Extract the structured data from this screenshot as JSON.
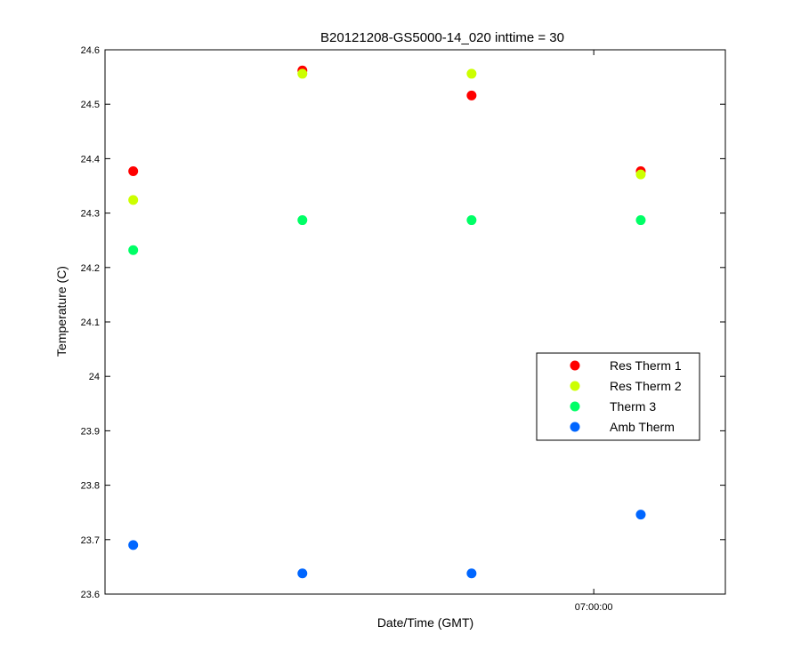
{
  "chart_data": {
    "type": "scatter",
    "title": "B20121208-GS5000-14_020 inttime = 30",
    "xlabel": "Date/Time (GMT)",
    "ylabel": "Temperature (C)",
    "ylim": [
      23.6,
      24.6
    ],
    "yticks": [
      "23.6",
      "23.7",
      "23.8",
      "23.9",
      "24",
      "24.1",
      "24.2",
      "24.3",
      "24.4",
      "24.5",
      "24.6"
    ],
    "x_ticks": [
      {
        "label": "07:00:00",
        "value": "07:00:00"
      }
    ],
    "xlim": [
      "06:47:00",
      "07:03:30"
    ],
    "x": [
      "06:47:45",
      "06:52:15",
      "06:56:45",
      "07:01:15"
    ],
    "legend_position": "right",
    "series": [
      {
        "name": "Res Therm 1",
        "color": "#ff0000",
        "values": [
          24.377,
          24.562,
          24.516,
          24.377
        ]
      },
      {
        "name": "Res Therm 2",
        "color": "#ccff00",
        "values": [
          24.324,
          24.556,
          24.556,
          24.371
        ]
      },
      {
        "name": "Therm 3",
        "color": "#00ff66",
        "values": [
          24.232,
          24.287,
          24.287,
          24.287
        ]
      },
      {
        "name": "Amb Therm",
        "color": "#0066ff",
        "values": [
          23.69,
          23.638,
          23.638,
          23.746
        ]
      }
    ],
    "grid": false
  }
}
